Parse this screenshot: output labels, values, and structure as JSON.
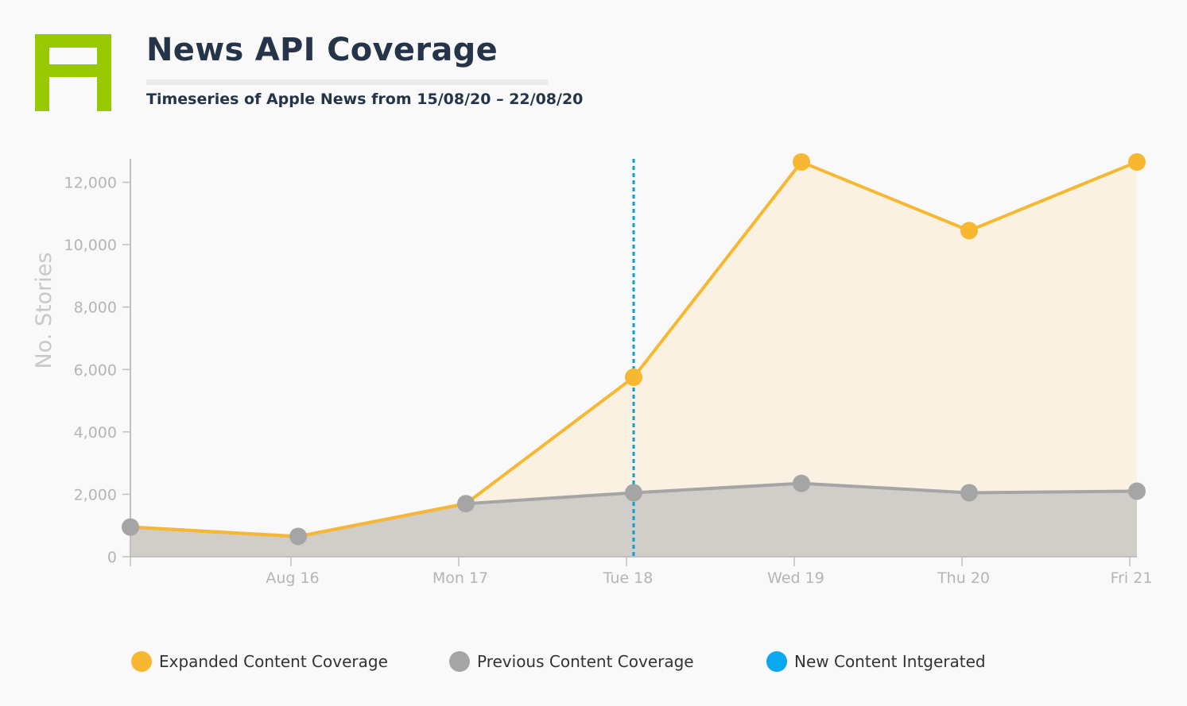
{
  "header": {
    "title": "News API Coverage",
    "subtitle": "Timeseries of Apple News from 15/08/20 – 22/08/20"
  },
  "colors": {
    "logo": "#97c800",
    "expanded": "#f7b731",
    "expanded_fill": "#fbf1e2",
    "previous": "#a5a5a5",
    "previous_fill": "#d1cdc8",
    "marker": "#0aa0d6",
    "axis": "#c0c0c0",
    "tick_text": "#b5b5b5"
  },
  "chart_data": {
    "type": "area",
    "title": "News API Coverage",
    "subtitle": "Timeseries of Apple News from 15/08/20 – 22/08/20",
    "ylabel": "No. Stories",
    "xlabel": "",
    "categories": [
      "",
      "Aug 16",
      "Mon 17",
      "Tue 18",
      "Wed 19",
      "Thu 20",
      "Fri 21"
    ],
    "ylim": [
      0,
      12700
    ],
    "yticks": [
      0,
      2000,
      4000,
      6000,
      8000,
      10000,
      12000
    ],
    "ytick_labels": [
      "0",
      "2,000",
      "4,000",
      "6,000",
      "8,000",
      "10,000",
      "12,000"
    ],
    "series": [
      {
        "name": "Expanded Content Coverage",
        "values": [
          950,
          650,
          1700,
          5750,
          12650,
          10450,
          12650
        ]
      },
      {
        "name": "Previous Content Coverage",
        "values": [
          950,
          650,
          1700,
          2050,
          2350,
          2050,
          2100
        ]
      }
    ],
    "vertical_marker": {
      "name": "New Content Intgerated",
      "at": "Tue 18"
    },
    "legend": [
      "Expanded Content Coverage",
      "Previous Content Coverage",
      "New Content Intgerated"
    ],
    "legend_position": "bottom"
  }
}
